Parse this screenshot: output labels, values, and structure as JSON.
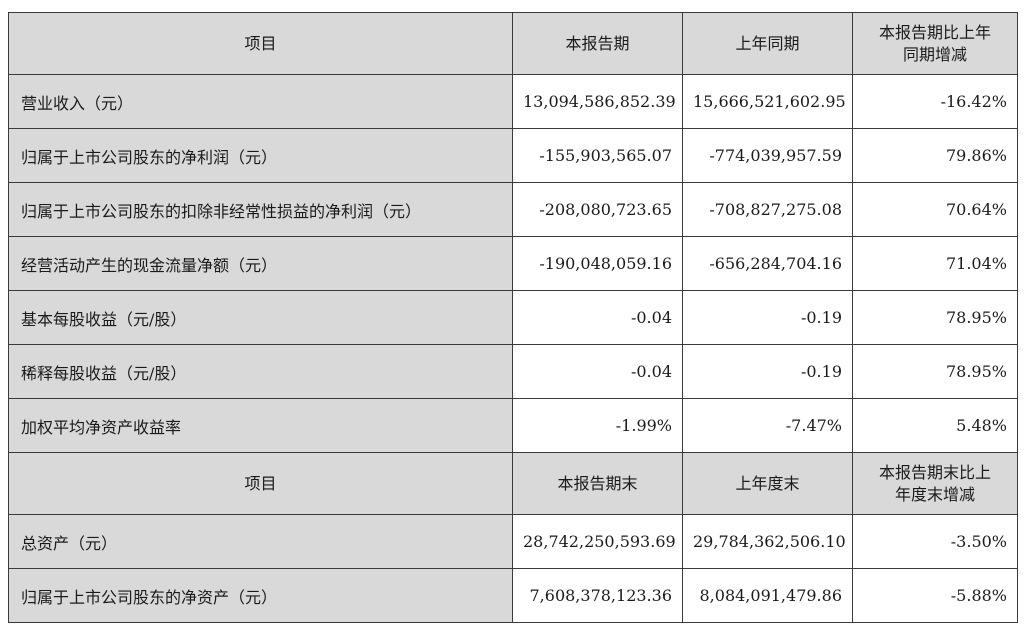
{
  "header1": {
    "item": "项目",
    "current": "本报告期",
    "prior": "上年同期",
    "change_line1": "本报告期比上年",
    "change_line2": "同期增减"
  },
  "rows1": [
    {
      "label": "营业收入（元）",
      "current": "13,094,586,852.39",
      "prior": "15,666,521,602.95",
      "change": "-16.42%"
    },
    {
      "label": "归属于上市公司股东的净利润（元）",
      "current": "-155,903,565.07",
      "prior": "-774,039,957.59",
      "change": "79.86%"
    },
    {
      "label": "归属于上市公司股东的扣除非经常性损益的净利润（元）",
      "current": "-208,080,723.65",
      "prior": "-708,827,275.08",
      "change": "70.64%"
    },
    {
      "label": "经营活动产生的现金流量净额（元）",
      "current": "-190,048,059.16",
      "prior": "-656,284,704.16",
      "change": "71.04%"
    },
    {
      "label": "基本每股收益（元/股）",
      "current": "-0.04",
      "prior": "-0.19",
      "change": "78.95%"
    },
    {
      "label": "稀释每股收益（元/股）",
      "current": "-0.04",
      "prior": "-0.19",
      "change": "78.95%"
    },
    {
      "label": "加权平均净资产收益率",
      "current": "-1.99%",
      "prior": "-7.47%",
      "change": "5.48%"
    }
  ],
  "header2": {
    "item": "项目",
    "current": "本报告期末",
    "prior": "上年度末",
    "change_line1": "本报告期末比上",
    "change_line2": "年度末增减"
  },
  "rows2": [
    {
      "label": "总资产（元）",
      "current": "28,742,250,593.69",
      "prior": "29,784,362,506.10",
      "change": "-3.50%"
    },
    {
      "label": "归属于上市公司股东的净资产（元）",
      "current": "7,608,378,123.36",
      "prior": "8,084,091,479.86",
      "change": "-5.88%"
    }
  ]
}
